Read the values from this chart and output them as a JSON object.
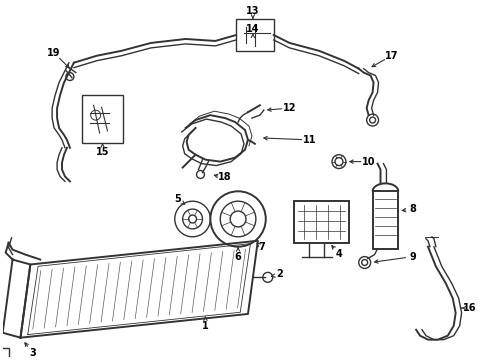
{
  "bg_color": "#ffffff",
  "line_color": "#333333",
  "text_color": "#000000",
  "figsize": [
    4.9,
    3.6
  ],
  "dpi": 100
}
